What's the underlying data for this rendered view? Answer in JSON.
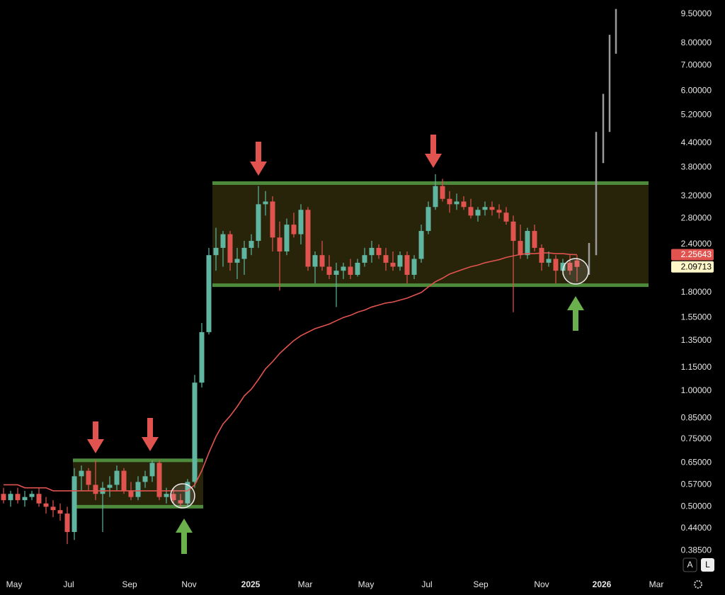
{
  "chart_data": {
    "type": "candlestick",
    "log_scale": true,
    "up_color": "#5fb5a0",
    "down_color": "#e0534f",
    "x": [
      0,
      1,
      2,
      3,
      4,
      5,
      6,
      7,
      8,
      9,
      10,
      11,
      12,
      13,
      14,
      15,
      16,
      17,
      18,
      19,
      20,
      21,
      22,
      23,
      24,
      25,
      26,
      27,
      28,
      29,
      30,
      31,
      32,
      33,
      34,
      35,
      36,
      37,
      38,
      39,
      40,
      41,
      42,
      43,
      44,
      45,
      46,
      47,
      48,
      49,
      50,
      51,
      52,
      53,
      54,
      55,
      56,
      57,
      58,
      59,
      60,
      61,
      62,
      63,
      64,
      65,
      66,
      67,
      68,
      69,
      70,
      71,
      72,
      73,
      74,
      75,
      76,
      77,
      78,
      79,
      80,
      81
    ],
    "open": [
      0.54,
      0.52,
      0.54,
      0.52,
      0.53,
      0.54,
      0.51,
      0.5,
      0.49,
      0.48,
      0.43,
      0.6,
      0.62,
      0.57,
      0.54,
      0.56,
      0.57,
      0.62,
      0.55,
      0.53,
      0.58,
      0.6,
      0.65,
      0.53,
      0.54,
      0.52,
      0.51,
      0.58,
      1.05,
      1.42,
      2.25,
      2.35,
      2.55,
      2.15,
      2.2,
      2.35,
      2.45,
      3.05,
      3.1,
      2.5,
      2.3,
      2.7,
      2.55,
      2.95,
      2.1,
      2.25,
      2.1,
      2.0,
      2.05,
      2.1,
      2.0,
      2.15,
      2.25,
      2.35,
      2.25,
      2.15,
      2.1,
      2.25,
      2.0,
      2.2,
      2.6,
      3.0,
      3.4,
      3.15,
      3.05,
      3.1,
      3.0,
      2.85,
      2.95,
      3.0,
      2.95,
      2.9,
      2.75,
      2.45,
      2.25,
      2.6,
      2.35,
      2.15,
      2.2,
      2.05,
      2.15,
      2.18
    ],
    "high": [
      0.56,
      0.55,
      0.56,
      0.55,
      0.55,
      0.56,
      0.53,
      0.52,
      0.51,
      0.5,
      0.63,
      0.64,
      0.63,
      0.66,
      0.58,
      0.6,
      0.64,
      0.63,
      0.58,
      0.6,
      0.62,
      0.66,
      0.66,
      0.56,
      0.56,
      0.54,
      0.59,
      1.1,
      1.5,
      2.35,
      2.65,
      2.6,
      2.6,
      2.35,
      2.45,
      2.55,
      3.4,
      3.3,
      3.2,
      2.75,
      2.8,
      2.9,
      3.05,
      3.0,
      2.3,
      2.45,
      2.25,
      2.15,
      2.15,
      2.2,
      2.2,
      2.35,
      2.45,
      2.4,
      2.35,
      2.3,
      2.3,
      2.3,
      2.25,
      2.7,
      3.1,
      3.65,
      3.55,
      3.3,
      3.25,
      3.2,
      3.15,
      3.0,
      3.1,
      3.1,
      3.05,
      3.0,
      2.85,
      2.7,
      2.65,
      2.7,
      2.4,
      2.3,
      2.25,
      2.2,
      2.25,
      2.25
    ],
    "low": [
      0.51,
      0.5,
      0.51,
      0.5,
      0.52,
      0.5,
      0.48,
      0.47,
      0.46,
      0.4,
      0.41,
      0.55,
      0.55,
      0.52,
      0.43,
      0.53,
      0.55,
      0.54,
      0.52,
      0.52,
      0.56,
      0.58,
      0.52,
      0.51,
      0.51,
      0.5,
      0.5,
      0.56,
      1.02,
      1.4,
      2.05,
      2.1,
      2.05,
      1.95,
      2.0,
      2.25,
      2.35,
      2.85,
      2.3,
      1.82,
      2.25,
      2.5,
      2.4,
      2.05,
      1.9,
      2.05,
      1.95,
      1.65,
      1.95,
      1.95,
      1.98,
      2.1,
      2.15,
      2.2,
      2.05,
      2.05,
      2.05,
      1.9,
      1.95,
      2.15,
      2.55,
      2.95,
      3.1,
      2.9,
      2.95,
      2.95,
      2.8,
      2.75,
      2.85,
      2.85,
      2.8,
      2.7,
      1.6,
      2.2,
      2.2,
      2.3,
      2.05,
      2.1,
      1.9,
      2.0,
      2.0,
      1.92
    ],
    "close": [
      0.52,
      0.54,
      0.52,
      0.53,
      0.54,
      0.51,
      0.5,
      0.49,
      0.48,
      0.43,
      0.6,
      0.62,
      0.57,
      0.54,
      0.56,
      0.57,
      0.62,
      0.55,
      0.53,
      0.58,
      0.6,
      0.65,
      0.53,
      0.54,
      0.52,
      0.51,
      0.58,
      1.05,
      1.42,
      2.25,
      2.35,
      2.55,
      2.15,
      2.2,
      2.35,
      2.45,
      3.05,
      3.1,
      2.5,
      2.3,
      2.7,
      2.55,
      2.95,
      2.1,
      2.25,
      2.1,
      2.0,
      2.05,
      2.1,
      2.0,
      2.15,
      2.25,
      2.35,
      2.25,
      2.15,
      2.1,
      2.25,
      2.0,
      2.2,
      2.6,
      3.0,
      3.4,
      3.15,
      3.05,
      3.1,
      3.0,
      2.85,
      2.95,
      3.0,
      2.95,
      2.9,
      2.75,
      2.45,
      2.25,
      2.6,
      2.35,
      2.15,
      2.2,
      2.05,
      2.15,
      2.05,
      2.09713
    ],
    "ma": {
      "color": "#e0534f",
      "values": [
        0.57,
        0.57,
        0.57,
        0.56,
        0.56,
        0.56,
        0.56,
        0.55,
        0.55,
        0.55,
        0.55,
        0.55,
        0.55,
        0.55,
        0.55,
        0.55,
        0.55,
        0.55,
        0.55,
        0.55,
        0.55,
        0.55,
        0.55,
        0.55,
        0.55,
        0.55,
        0.55,
        0.57,
        0.62,
        0.69,
        0.76,
        0.82,
        0.86,
        0.91,
        0.97,
        1.01,
        1.07,
        1.14,
        1.19,
        1.25,
        1.3,
        1.35,
        1.39,
        1.42,
        1.45,
        1.47,
        1.49,
        1.52,
        1.55,
        1.57,
        1.6,
        1.62,
        1.65,
        1.67,
        1.69,
        1.7,
        1.72,
        1.74,
        1.77,
        1.8,
        1.86,
        1.92,
        1.96,
        2.01,
        2.04,
        2.07,
        2.1,
        2.12,
        2.15,
        2.17,
        2.19,
        2.22,
        2.24,
        2.26,
        2.27,
        2.27,
        2.28,
        2.28,
        2.27,
        2.27,
        2.26,
        2.25643
      ]
    },
    "last_price_color": "#fff7c8",
    "projection": {
      "color": "#9a9a9a",
      "x": [
        82.7,
        83.7,
        84.7,
        85.6,
        86.5
      ],
      "low": [
        2.0,
        2.25,
        3.9,
        4.7,
        7.5
      ],
      "high": [
        2.42,
        4.7,
        5.9,
        8.4,
        9.8
      ]
    },
    "zones": [
      {
        "xlim": [
          9.8,
          28.2
        ],
        "ylim": [
          0.5,
          0.66
        ]
      },
      {
        "xlim": [
          29.5,
          91.1
        ],
        "ylim": [
          1.88,
          3.46
        ]
      }
    ],
    "xlim": [
      -0.5,
      93.5
    ],
    "ylim": [
      0.335,
      10.34
    ],
    "xticks": [
      {
        "value": 1.5,
        "label": "May"
      },
      {
        "value": 9.2,
        "label": "Jul"
      },
      {
        "value": 17.8,
        "label": "Sep"
      },
      {
        "value": 26.2,
        "label": "Nov"
      },
      {
        "value": 34.9,
        "label": "2025"
      },
      {
        "value": 42.6,
        "label": "Mar"
      },
      {
        "value": 51.2,
        "label": "May"
      },
      {
        "value": 59.8,
        "label": "Jul"
      },
      {
        "value": 67.4,
        "label": "Sep"
      },
      {
        "value": 76.0,
        "label": "Nov"
      },
      {
        "value": 84.5,
        "label": "2026"
      },
      {
        "value": 92.2,
        "label": "Mar"
      }
    ],
    "yticks": [
      {
        "value": 9.5,
        "label": "9.50000"
      },
      {
        "value": 8,
        "label": "8.00000"
      },
      {
        "value": 7,
        "label": "7.00000"
      },
      {
        "value": 6,
        "label": "6.00000"
      },
      {
        "value": 5.2,
        "label": "5.20000"
      },
      {
        "value": 4.4,
        "label": "4.40000"
      },
      {
        "value": 3.8,
        "label": "3.80000"
      },
      {
        "value": 3.2,
        "label": "3.20000"
      },
      {
        "value": 2.8,
        "label": "2.80000"
      },
      {
        "value": 2.4,
        "label": "2.40000"
      },
      {
        "value": 1.8,
        "label": "1.80000"
      },
      {
        "value": 1.55,
        "label": "1.55000"
      },
      {
        "value": 1.35,
        "label": "1.35000"
      },
      {
        "value": 1.15,
        "label": "1.15000"
      },
      {
        "value": 1,
        "label": "1.00000"
      },
      {
        "value": 0.85,
        "label": "0.85000"
      },
      {
        "value": 0.75,
        "label": "0.75000"
      },
      {
        "value": 0.65,
        "label": "0.65000"
      },
      {
        "value": 0.57,
        "label": "0.57000"
      },
      {
        "value": 0.5,
        "label": "0.50000"
      },
      {
        "value": 0.44,
        "label": "0.44000"
      },
      {
        "value": 0.385,
        "label": "0.38500"
      }
    ]
  },
  "ui": {
    "buttons": [
      "A",
      "L"
    ]
  }
}
